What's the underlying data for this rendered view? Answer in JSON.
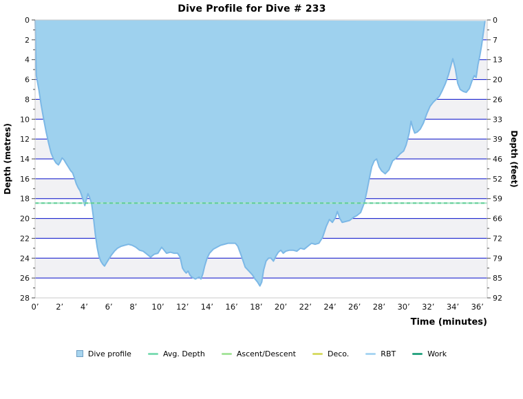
{
  "chart_data": {
    "type": "area",
    "title": "Dive Profile for Dive # 233",
    "xlabel": "Time (minutes)",
    "ylabel_left": "Depth (metres)",
    "ylabel_right": "Depth (feet)",
    "xlim": [
      0,
      36.8
    ],
    "ylim": [
      0,
      28
    ],
    "y_axis_inverted": true,
    "grid": true,
    "gridline_color": "#0009c8",
    "band_color": "#f1f1f4",
    "plot_border_color": "#c9c9c9",
    "x_ticks": [
      {
        "v": 0,
        "label": "0’"
      },
      {
        "v": 2,
        "label": "2’"
      },
      {
        "v": 4,
        "label": "4’"
      },
      {
        "v": 6,
        "label": "6’"
      },
      {
        "v": 8,
        "label": "8’"
      },
      {
        "v": 10,
        "label": "10’"
      },
      {
        "v": 12,
        "label": "12’"
      },
      {
        "v": 14,
        "label": "14’"
      },
      {
        "v": 16,
        "label": "16’"
      },
      {
        "v": 18,
        "label": "18’"
      },
      {
        "v": 20,
        "label": "20’"
      },
      {
        "v": 22,
        "label": "22’"
      },
      {
        "v": 24,
        "label": "24’"
      },
      {
        "v": 26,
        "label": "26’"
      },
      {
        "v": 28,
        "label": "28’"
      },
      {
        "v": 30,
        "label": "30’"
      },
      {
        "v": 32,
        "label": "32’"
      },
      {
        "v": 34,
        "label": "34’"
      },
      {
        "v": 36,
        "label": "36’"
      }
    ],
    "y_ticks": [
      {
        "v": 0,
        "metres": "0",
        "feet": "0"
      },
      {
        "v": 2,
        "metres": "2",
        "feet": "7"
      },
      {
        "v": 4,
        "metres": "4",
        "feet": "13"
      },
      {
        "v": 6,
        "metres": "6",
        "feet": "20"
      },
      {
        "v": 8,
        "metres": "8",
        "feet": "26"
      },
      {
        "v": 10,
        "metres": "10",
        "feet": "33"
      },
      {
        "v": 12,
        "metres": "12",
        "feet": "39"
      },
      {
        "v": 14,
        "metres": "14",
        "feet": "46"
      },
      {
        "v": 16,
        "metres": "16",
        "feet": "52"
      },
      {
        "v": 18,
        "metres": "18",
        "feet": "59"
      },
      {
        "v": 20,
        "metres": "20",
        "feet": "66"
      },
      {
        "v": 22,
        "metres": "22",
        "feet": "72"
      },
      {
        "v": 24,
        "metres": "24",
        "feet": "79"
      },
      {
        "v": 26,
        "metres": "26",
        "feet": "85"
      },
      {
        "v": 28,
        "metres": "28",
        "feet": "92"
      }
    ],
    "avg_depth_m": 18.45,
    "avg_depth_line_colors": [
      "#a7e6c6",
      "#5fcd96"
    ],
    "series": [
      {
        "name": "Dive profile",
        "fill_color": "#9ed1ee",
        "edge_color": "#7cb8e6",
        "points": [
          [
            0,
            0
          ],
          [
            0.05,
            3
          ],
          [
            0.1,
            5.6
          ],
          [
            0.3,
            7
          ],
          [
            0.5,
            8.6
          ],
          [
            0.7,
            10
          ],
          [
            0.9,
            11.3
          ],
          [
            1.1,
            12.4
          ],
          [
            1.3,
            13.4
          ],
          [
            1.5,
            14
          ],
          [
            1.7,
            14.4
          ],
          [
            1.9,
            14.6
          ],
          [
            2.05,
            14.3
          ],
          [
            2.2,
            13.9
          ],
          [
            2.35,
            14.1
          ],
          [
            2.5,
            14.4
          ],
          [
            2.7,
            14.8
          ],
          [
            2.9,
            15.2
          ],
          [
            3.05,
            15.4
          ],
          [
            3.2,
            15.9
          ],
          [
            3.35,
            16.5
          ],
          [
            3.5,
            16.9
          ],
          [
            3.65,
            17.2
          ],
          [
            3.8,
            17.7
          ],
          [
            3.95,
            18.3
          ],
          [
            4.05,
            18.7
          ],
          [
            4.15,
            18.2
          ],
          [
            4.3,
            17.5
          ],
          [
            4.45,
            17.9
          ],
          [
            4.6,
            18.5
          ],
          [
            4.75,
            19.9
          ],
          [
            4.9,
            21.6
          ],
          [
            5.05,
            22.9
          ],
          [
            5.2,
            23.8
          ],
          [
            5.35,
            24.3
          ],
          [
            5.5,
            24.6
          ],
          [
            5.65,
            24.8
          ],
          [
            5.8,
            24.5
          ],
          [
            6,
            24.1
          ],
          [
            6.2,
            23.7
          ],
          [
            6.45,
            23.3
          ],
          [
            6.7,
            23
          ],
          [
            7,
            22.8
          ],
          [
            7.3,
            22.7
          ],
          [
            7.6,
            22.6
          ],
          [
            7.9,
            22.7
          ],
          [
            8.2,
            22.9
          ],
          [
            8.5,
            23.2
          ],
          [
            8.8,
            23.3
          ],
          [
            9.1,
            23.6
          ],
          [
            9.4,
            23.9
          ],
          [
            9.7,
            23.6
          ],
          [
            10,
            23.5
          ],
          [
            10.3,
            22.9
          ],
          [
            10.5,
            23.2
          ],
          [
            10.7,
            23.5
          ],
          [
            11,
            23.4
          ],
          [
            11.3,
            23.5
          ],
          [
            11.6,
            23.5
          ],
          [
            11.8,
            23.9
          ],
          [
            12,
            25
          ],
          [
            12.15,
            25.3
          ],
          [
            12.3,
            25.5
          ],
          [
            12.45,
            25.3
          ],
          [
            12.6,
            25.7
          ],
          [
            12.75,
            25.9
          ],
          [
            12.9,
            26
          ],
          [
            13.05,
            26.1
          ],
          [
            13.2,
            26
          ],
          [
            13.35,
            25.9
          ],
          [
            13.5,
            26.1
          ],
          [
            13.65,
            25.6
          ],
          [
            13.8,
            24.8
          ],
          [
            14,
            24
          ],
          [
            14.2,
            23.5
          ],
          [
            14.5,
            23.1
          ],
          [
            14.8,
            22.9
          ],
          [
            15.1,
            22.7
          ],
          [
            15.4,
            22.6
          ],
          [
            15.7,
            22.5
          ],
          [
            16,
            22.5
          ],
          [
            16.3,
            22.5
          ],
          [
            16.5,
            22.8
          ],
          [
            16.8,
            23.8
          ],
          [
            17.1,
            24.9
          ],
          [
            17.4,
            25.3
          ],
          [
            17.7,
            25.7
          ],
          [
            17.9,
            26.1
          ],
          [
            18.1,
            26.4
          ],
          [
            18.3,
            26.8
          ],
          [
            18.45,
            26.4
          ],
          [
            18.6,
            25.2
          ],
          [
            18.8,
            24.3
          ],
          [
            19,
            24
          ],
          [
            19.2,
            24
          ],
          [
            19.4,
            24.3
          ],
          [
            19.6,
            23.8
          ],
          [
            19.8,
            23.4
          ],
          [
            20,
            23.2
          ],
          [
            20.2,
            23.5
          ],
          [
            20.4,
            23.3
          ],
          [
            20.7,
            23.2
          ],
          [
            21,
            23.2
          ],
          [
            21.3,
            23.3
          ],
          [
            21.6,
            23
          ],
          [
            21.9,
            23.1
          ],
          [
            22.2,
            22.8
          ],
          [
            22.5,
            22.5
          ],
          [
            22.8,
            22.6
          ],
          [
            23.1,
            22.5
          ],
          [
            23.4,
            21.9
          ],
          [
            23.7,
            20.8
          ],
          [
            23.95,
            20.1
          ],
          [
            24.2,
            20.4
          ],
          [
            24.45,
            19.9
          ],
          [
            24.6,
            19.3
          ],
          [
            24.8,
            20
          ],
          [
            25,
            20.4
          ],
          [
            25.3,
            20.3
          ],
          [
            25.6,
            20.2
          ],
          [
            25.9,
            19.9
          ],
          [
            26.2,
            19.7
          ],
          [
            26.5,
            19.4
          ],
          [
            26.8,
            18.4
          ],
          [
            27,
            17.3
          ],
          [
            27.2,
            16
          ],
          [
            27.4,
            14.8
          ],
          [
            27.6,
            14.2
          ],
          [
            27.8,
            14
          ],
          [
            28,
            14.8
          ],
          [
            28.2,
            15.2
          ],
          [
            28.5,
            15.5
          ],
          [
            28.8,
            15.1
          ],
          [
            29.1,
            14.2
          ],
          [
            29.4,
            13.9
          ],
          [
            29.7,
            13.5
          ],
          [
            30,
            13.2
          ],
          [
            30.2,
            12.6
          ],
          [
            30.45,
            11.4
          ],
          [
            30.6,
            10.2
          ],
          [
            30.75,
            10.9
          ],
          [
            30.9,
            11.4
          ],
          [
            31.1,
            11.3
          ],
          [
            31.35,
            11
          ],
          [
            31.6,
            10.4
          ],
          [
            31.9,
            9.4
          ],
          [
            32.15,
            8.7
          ],
          [
            32.4,
            8.3
          ],
          [
            32.65,
            8
          ],
          [
            32.9,
            7.7
          ],
          [
            33.15,
            7.1
          ],
          [
            33.4,
            6.4
          ],
          [
            33.65,
            5.5
          ],
          [
            33.85,
            4.6
          ],
          [
            34,
            3.9
          ],
          [
            34.2,
            4.9
          ],
          [
            34.4,
            6.4
          ],
          [
            34.6,
            7
          ],
          [
            34.85,
            7.2
          ],
          [
            35.1,
            7.3
          ],
          [
            35.35,
            6.9
          ],
          [
            35.6,
            6
          ],
          [
            35.75,
            5.6
          ],
          [
            35.9,
            5.8
          ],
          [
            36.05,
            4.5
          ],
          [
            36.2,
            3.6
          ],
          [
            36.35,
            2.5
          ],
          [
            36.5,
            1.2
          ],
          [
            36.62,
            0.1
          ]
        ]
      }
    ],
    "legend": {
      "position": "bottom",
      "entries": [
        {
          "label": "Dive profile",
          "swatch": "square",
          "color": "#a7d4ee",
          "border": "#6e9ec2"
        },
        {
          "label": "Avg. Depth",
          "swatch": "line",
          "color": "#7edcb4"
        },
        {
          "label": "Ascent/Descent",
          "swatch": "line",
          "color": "#a6e49c"
        },
        {
          "label": "Deco.",
          "swatch": "line",
          "color": "#d7db66"
        },
        {
          "label": "RBT",
          "swatch": "line",
          "color": "#a9d6f2"
        },
        {
          "label": "Work",
          "swatch": "line",
          "color": "#2ca583"
        }
      ]
    }
  }
}
